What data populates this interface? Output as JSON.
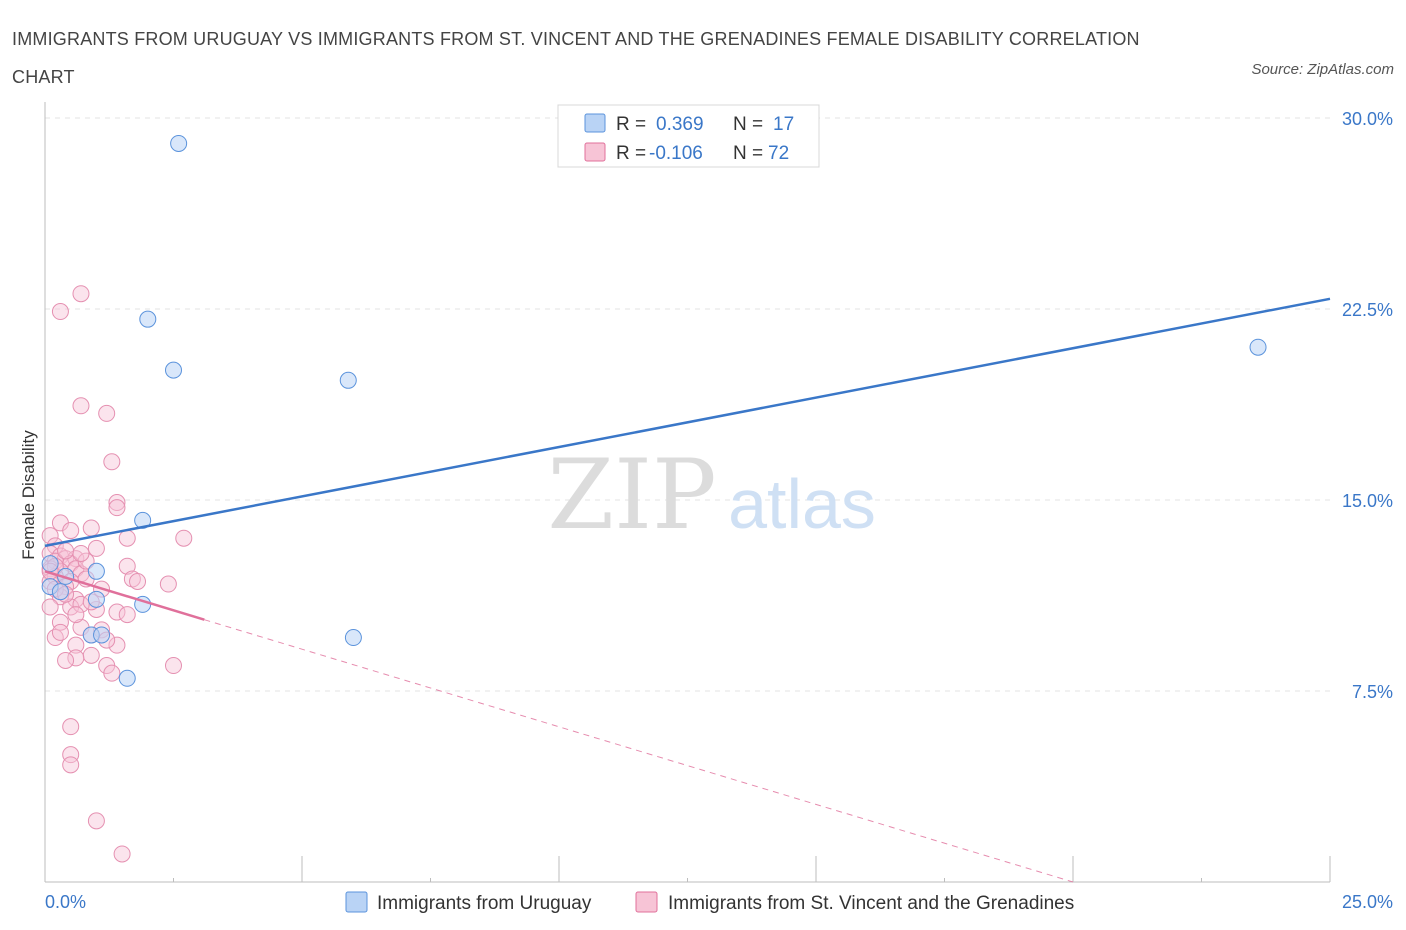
{
  "chart_title": "IMMIGRANTS FROM URUGUAY VS IMMIGRANTS FROM ST. VINCENT AND THE GRENADINES FEMALE DISABILITY CORRELATION CHART",
  "source": "Source: ZipAtlas.com",
  "watermark": {
    "zip": "ZIP",
    "atlas": "atlas"
  },
  "colors": {
    "blue": "#5b93dc",
    "blue_fill": "#b9d3f5",
    "pink": "#e0709b",
    "pink_fill": "#f7c4d6",
    "tick": "#3a77c8"
  },
  "legend": {
    "rows": [
      {
        "r_label": "R =",
        "r_value": "0.369",
        "n_label": "N =",
        "n_value": "17"
      },
      {
        "r_label": "R =",
        "r_value": "-0.106",
        "n_label": "N =",
        "n_value": "72"
      }
    ]
  },
  "bottom_legend": [
    "Immigrants from Uruguay",
    "Immigrants from St. Vincent and the Grenadines"
  ],
  "chart_data": {
    "type": "scatter",
    "title": "IMMIGRANTS FROM URUGUAY VS IMMIGRANTS FROM ST. VINCENT AND THE GRENADINES FEMALE DISABILITY CORRELATION CHART",
    "xlabel": "",
    "ylabel": "Female Disability",
    "xlim": [
      0,
      25
    ],
    "ylim": [
      0,
      30
    ],
    "x_tick_labels": [
      "0.0%",
      "25.0%"
    ],
    "y_ticks": [
      7.5,
      15.0,
      22.5,
      30.0
    ],
    "y_tick_labels": [
      "7.5%",
      "15.0%",
      "22.5%",
      "30.0%"
    ],
    "grid": true,
    "series": [
      {
        "name": "Immigrants from Uruguay",
        "R": 0.369,
        "N": 17,
        "points": [
          [
            2.6,
            29.0
          ],
          [
            2.0,
            22.1
          ],
          [
            2.5,
            20.1
          ],
          [
            5.9,
            19.7
          ],
          [
            23.6,
            21.0
          ],
          [
            1.9,
            14.2
          ],
          [
            1.0,
            12.2
          ],
          [
            0.1,
            11.6
          ],
          [
            0.3,
            11.4
          ],
          [
            1.0,
            11.1
          ],
          [
            1.9,
            10.9
          ],
          [
            0.9,
            9.7
          ],
          [
            1.1,
            9.7
          ],
          [
            6.0,
            9.6
          ],
          [
            1.6,
            8.0
          ],
          [
            0.1,
            12.5
          ],
          [
            0.4,
            12.0
          ]
        ],
        "trend": {
          "x": [
            0,
            25
          ],
          "y": [
            13.2,
            22.9
          ],
          "dashed_extension": false
        }
      },
      {
        "name": "Immigrants from St. Vincent and the Grenadines",
        "R": -0.106,
        "N": 72,
        "points": [
          [
            0.7,
            23.1
          ],
          [
            0.3,
            22.4
          ],
          [
            0.7,
            18.7
          ],
          [
            1.2,
            18.4
          ],
          [
            1.3,
            16.5
          ],
          [
            1.4,
            14.9
          ],
          [
            1.4,
            14.7
          ],
          [
            0.3,
            14.1
          ],
          [
            0.9,
            13.9
          ],
          [
            0.5,
            13.8
          ],
          [
            0.1,
            13.6
          ],
          [
            1.6,
            13.5
          ],
          [
            2.7,
            13.5
          ],
          [
            0.2,
            13.2
          ],
          [
            1.0,
            13.1
          ],
          [
            0.1,
            12.9
          ],
          [
            0.3,
            12.8
          ],
          [
            0.4,
            12.7
          ],
          [
            0.6,
            12.7
          ],
          [
            0.2,
            12.6
          ],
          [
            0.5,
            12.5
          ],
          [
            1.6,
            12.4
          ],
          [
            0.1,
            12.3
          ],
          [
            0.3,
            12.2
          ],
          [
            0.6,
            12.3
          ],
          [
            0.2,
            12.0
          ],
          [
            0.7,
            12.1
          ],
          [
            1.7,
            11.9
          ],
          [
            0.1,
            11.8
          ],
          [
            0.5,
            11.8
          ],
          [
            0.8,
            11.9
          ],
          [
            1.8,
            11.8
          ],
          [
            2.4,
            11.7
          ],
          [
            0.4,
            11.6
          ],
          [
            1.1,
            11.5
          ],
          [
            0.3,
            11.2
          ],
          [
            0.6,
            11.1
          ],
          [
            0.1,
            10.8
          ],
          [
            0.5,
            10.8
          ],
          [
            0.7,
            10.9
          ],
          [
            1.4,
            10.6
          ],
          [
            1.6,
            10.5
          ],
          [
            0.3,
            10.2
          ],
          [
            0.7,
            10.0
          ],
          [
            1.1,
            9.9
          ],
          [
            0.9,
            9.7
          ],
          [
            0.2,
            9.6
          ],
          [
            0.6,
            9.3
          ],
          [
            1.4,
            9.3
          ],
          [
            0.9,
            8.9
          ],
          [
            0.6,
            8.8
          ],
          [
            0.4,
            8.7
          ],
          [
            2.5,
            8.5
          ],
          [
            1.2,
            8.5
          ],
          [
            1.3,
            8.2
          ],
          [
            0.5,
            6.1
          ],
          [
            0.5,
            5.0
          ],
          [
            0.5,
            4.6
          ],
          [
            1.0,
            2.4
          ],
          [
            1.5,
            1.1
          ],
          [
            0.2,
            12.4
          ],
          [
            0.4,
            13.0
          ],
          [
            0.8,
            12.6
          ],
          [
            0.2,
            11.5
          ],
          [
            1.0,
            10.7
          ],
          [
            0.6,
            10.5
          ],
          [
            0.3,
            9.8
          ],
          [
            0.9,
            11.0
          ],
          [
            1.2,
            9.5
          ],
          [
            0.7,
            12.9
          ],
          [
            0.1,
            12.2
          ],
          [
            0.4,
            11.3
          ]
        ],
        "trend": {
          "x": [
            0,
            3.1
          ],
          "y": [
            12.2,
            10.3
          ],
          "dashed_extension": {
            "x": [
              3.1,
              20.0
            ],
            "y": [
              10.3,
              0.0
            ]
          }
        }
      }
    ]
  }
}
